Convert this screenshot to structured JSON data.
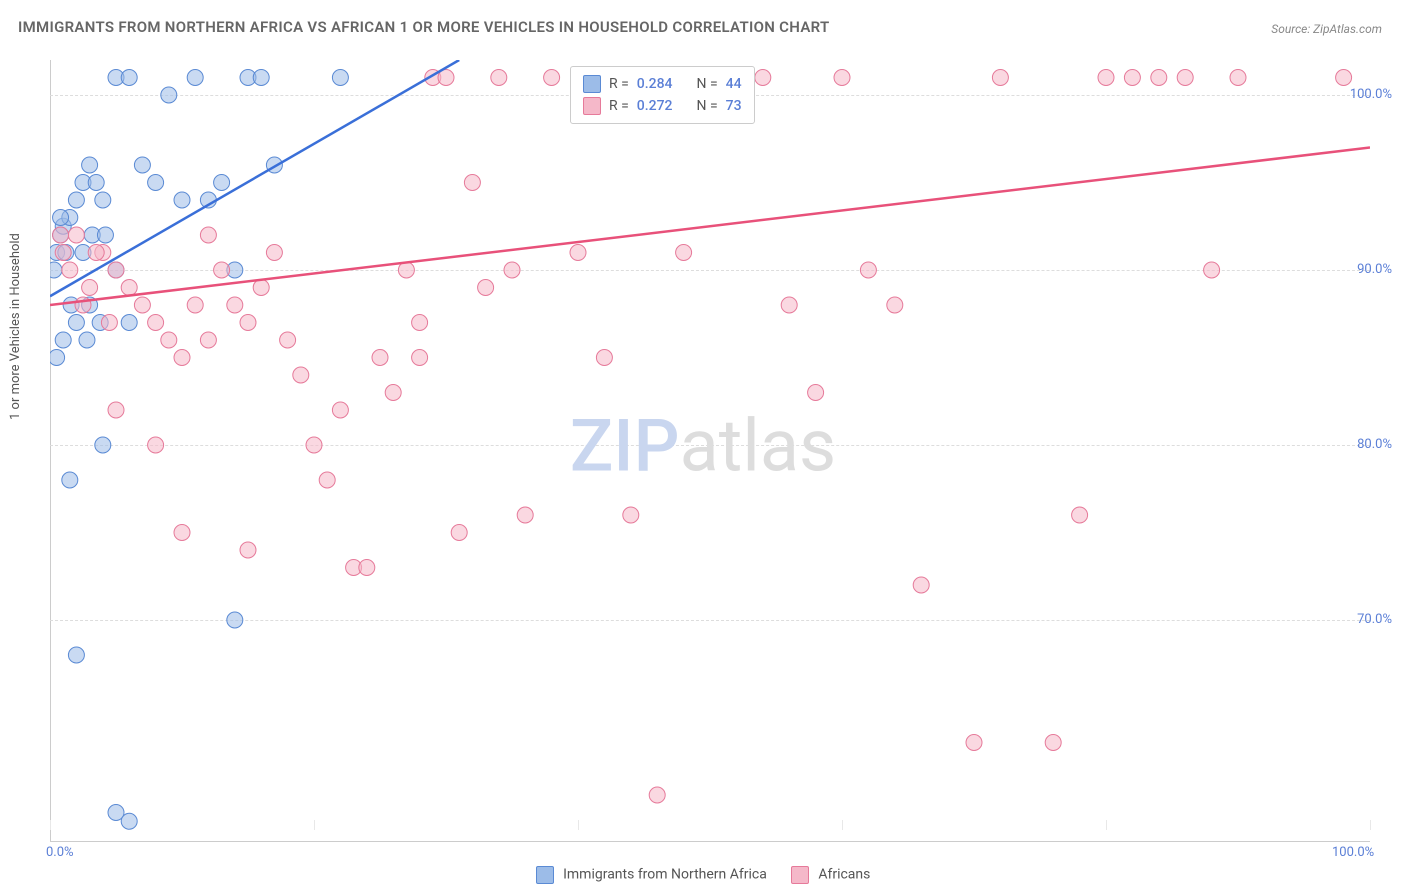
{
  "title": "IMMIGRANTS FROM NORTHERN AFRICA VS AFRICAN 1 OR MORE VEHICLES IN HOUSEHOLD CORRELATION CHART",
  "source": "Source: ZipAtlas.com",
  "watermark_zip": "ZIP",
  "watermark_atlas": "atlas",
  "y_axis_label": "1 or more Vehicles in Household",
  "chart": {
    "type": "scatter",
    "background_color": "#ffffff",
    "grid_color": "#dddddd",
    "axis_color": "#cccccc",
    "text_color": "#555555",
    "value_color": "#5b7fd6",
    "xlim": [
      0,
      100
    ],
    "ylim": [
      58,
      102
    ],
    "x_ticks": [
      0,
      20,
      40,
      60,
      80,
      100
    ],
    "x_tick_labels": [
      "0.0%",
      "",
      "",
      "",
      "",
      "100.0%"
    ],
    "y_ticks": [
      70,
      80,
      90,
      100
    ],
    "y_tick_labels": [
      "70.0%",
      "80.0%",
      "90.0%",
      "100.0%"
    ],
    "series": [
      {
        "name": "Immigrants from Northern Africa",
        "color": "#9cbce8",
        "stroke": "#5a8ad4",
        "fill_opacity": 0.55,
        "line_color": "#3a6fd8",
        "r_value": "0.284",
        "n_value": "44",
        "trend": {
          "x1": 0,
          "y1": 88.5,
          "x2": 31,
          "y2": 102
        },
        "points": [
          [
            0.5,
            91
          ],
          [
            0.8,
            92
          ],
          [
            1,
            92.5
          ],
          [
            1.5,
            93
          ],
          [
            2,
            94
          ],
          [
            2.5,
            95
          ],
          [
            3,
            96
          ],
          [
            3.5,
            95
          ],
          [
            4,
            94
          ],
          [
            5,
            101
          ],
          [
            6,
            101
          ],
          [
            7,
            96
          ],
          [
            8,
            95
          ],
          [
            9,
            100
          ],
          [
            10,
            94
          ],
          [
            11,
            101
          ],
          [
            12,
            94
          ],
          [
            13,
            95
          ],
          [
            14,
            90
          ],
          [
            15,
            101
          ],
          [
            16,
            101
          ],
          [
            17,
            96
          ],
          [
            2,
            87
          ],
          [
            3,
            88
          ],
          [
            1,
            86
          ],
          [
            0.5,
            85
          ],
          [
            4,
            80
          ],
          [
            5,
            90
          ],
          [
            6,
            87
          ],
          [
            14,
            70
          ],
          [
            2,
            68
          ],
          [
            5,
            59
          ],
          [
            6,
            58.5
          ],
          [
            1.5,
            78
          ],
          [
            2.5,
            91
          ],
          [
            3.2,
            92
          ],
          [
            4.2,
            92
          ],
          [
            0.3,
            90
          ],
          [
            1.2,
            91
          ],
          [
            0.8,
            93
          ],
          [
            1.6,
            88
          ],
          [
            2.8,
            86
          ],
          [
            3.8,
            87
          ],
          [
            22,
            101
          ]
        ]
      },
      {
        "name": "Africans",
        "color": "#f5b8c9",
        "stroke": "#e67a9a",
        "fill_opacity": 0.55,
        "line_color": "#e8517a",
        "r_value": "0.272",
        "n_value": "73",
        "trend": {
          "x1": 0,
          "y1": 88,
          "x2": 100,
          "y2": 97
        },
        "points": [
          [
            1,
            91
          ],
          [
            2,
            92
          ],
          [
            3,
            89
          ],
          [
            4,
            91
          ],
          [
            5,
            90
          ],
          [
            6,
            89
          ],
          [
            7,
            88
          ],
          [
            8,
            87
          ],
          [
            9,
            86
          ],
          [
            10,
            85
          ],
          [
            11,
            88
          ],
          [
            12,
            86
          ],
          [
            13,
            90
          ],
          [
            14,
            88
          ],
          [
            15,
            87
          ],
          [
            16,
            89
          ],
          [
            17,
            91
          ],
          [
            18,
            86
          ],
          [
            19,
            84
          ],
          [
            20,
            80
          ],
          [
            21,
            78
          ],
          [
            22,
            82
          ],
          [
            23,
            73
          ],
          [
            24,
            73
          ],
          [
            25,
            85
          ],
          [
            26,
            83
          ],
          [
            27,
            90
          ],
          [
            28,
            87
          ],
          [
            29,
            101
          ],
          [
            30,
            101
          ],
          [
            32,
            95
          ],
          [
            33,
            89
          ],
          [
            34,
            101
          ],
          [
            35,
            90
          ],
          [
            36,
            76
          ],
          [
            38,
            101
          ],
          [
            40,
            91
          ],
          [
            42,
            85
          ],
          [
            44,
            76
          ],
          [
            46,
            60
          ],
          [
            48,
            91
          ],
          [
            50,
            101
          ],
          [
            52,
            101
          ],
          [
            54,
            101
          ],
          [
            56,
            88
          ],
          [
            58,
            83
          ],
          [
            60,
            101
          ],
          [
            62,
            90
          ],
          [
            64,
            88
          ],
          [
            66,
            72
          ],
          [
            70,
            63
          ],
          [
            72,
            101
          ],
          [
            76,
            63
          ],
          [
            78,
            76
          ],
          [
            80,
            101
          ],
          [
            82,
            101
          ],
          [
            84,
            101
          ],
          [
            86,
            101
          ],
          [
            88,
            90
          ],
          [
            90,
            101
          ],
          [
            98,
            101
          ],
          [
            5,
            82
          ],
          [
            10,
            75
          ],
          [
            15,
            74
          ],
          [
            8,
            80
          ],
          [
            12,
            92
          ],
          [
            28,
            85
          ],
          [
            31,
            75
          ],
          [
            1.5,
            90
          ],
          [
            2.5,
            88
          ],
          [
            3.5,
            91
          ],
          [
            4.5,
            87
          ],
          [
            0.8,
            92
          ]
        ]
      }
    ]
  },
  "stats_legend": {
    "r_label": "R =",
    "n_label": "N ="
  },
  "bottom_legend": {
    "items": [
      {
        "label": "Immigrants from Northern Africa",
        "series_idx": 0
      },
      {
        "label": "Africans",
        "series_idx": 1
      }
    ]
  }
}
